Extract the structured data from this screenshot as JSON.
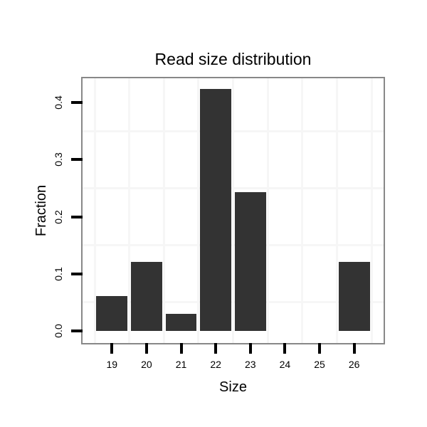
{
  "chart_data": {
    "type": "bar",
    "title": "Read size distribution",
    "xlabel": "Size",
    "ylabel": "Fraction",
    "categories": [
      "19",
      "20",
      "21",
      "22",
      "23",
      "24",
      "25",
      "26"
    ],
    "values": [
      0.0606,
      0.1212,
      0.0303,
      0.4242,
      0.2424,
      0,
      0,
      0.1212
    ],
    "y_ticks": [
      0,
      0.1,
      0.2,
      0.3,
      0.4
    ],
    "y_tick_labels": [
      "0.0",
      "0.1",
      "0.2",
      "0.3",
      "0.4"
    ],
    "ylim": [
      -0.0212,
      0.4424
    ],
    "grid_h_lines": [
      0.05,
      0.15,
      0.25,
      0.35
    ],
    "grid_v_at_category_boundaries": true,
    "legend_position": "none",
    "colors": {
      "bar": "#333333",
      "panel_border": "#888888",
      "grid": "#f6f6f6",
      "tick": "#000000",
      "text": "#000000",
      "background": "#ffffff"
    }
  }
}
